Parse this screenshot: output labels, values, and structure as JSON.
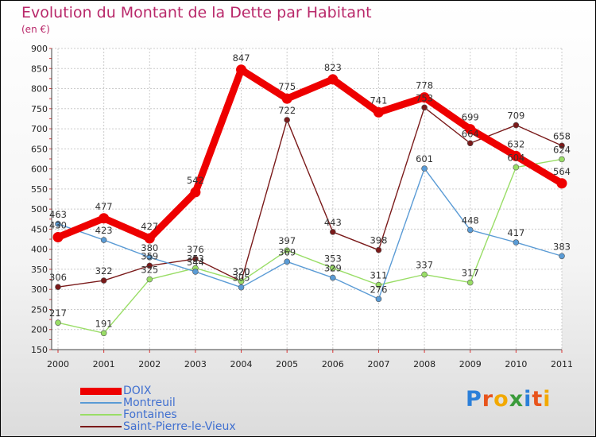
{
  "chart_data": {
    "type": "line",
    "title": "Evolution du Montant de la Dette par Habitant",
    "unit_label": "(en €)",
    "categories": [
      "2000",
      "2001",
      "2002",
      "2003",
      "2004",
      "2005",
      "2006",
      "2007",
      "2008",
      "2009",
      "2010",
      "2011"
    ],
    "ylim": [
      150,
      900
    ],
    "yticks": [
      150,
      200,
      250,
      300,
      350,
      400,
      450,
      500,
      550,
      600,
      650,
      700,
      750,
      800,
      850,
      900
    ],
    "grid": true,
    "legend_position": "bottom-left",
    "series": [
      {
        "name": "DOIX",
        "color": "#ee0000",
        "values": [
          430,
          477,
          427,
          542,
          847,
          775,
          823,
          741,
          778,
          699,
          632,
          564
        ]
      },
      {
        "name": "Montreuil",
        "color": "#5a9bd5",
        "values": [
          463,
          423,
          380,
          344,
          305,
          369,
          329,
          276,
          601,
          448,
          417,
          383
        ]
      },
      {
        "name": "Fontaines",
        "color": "#99dd66",
        "values": [
          217,
          191,
          325,
          353,
          320,
          397,
          353,
          311,
          337,
          317,
          604,
          624
        ]
      },
      {
        "name": "Saint-Pierre-le-Vieux",
        "color": "#7a1a1a",
        "values": [
          306,
          322,
          359,
          376,
          320,
          722,
          443,
          398,
          753,
          664,
          709,
          658
        ]
      }
    ]
  },
  "brand": {
    "name": "Proxiti",
    "letters": [
      "P",
      "r",
      "o",
      "x",
      "i",
      "t",
      "i"
    ],
    "colors": [
      "#2b7fd9",
      "#e8541c",
      "#f2a900",
      "#3a9b3a",
      "#2b7fd9",
      "#e8541c",
      "#f2a900"
    ]
  }
}
